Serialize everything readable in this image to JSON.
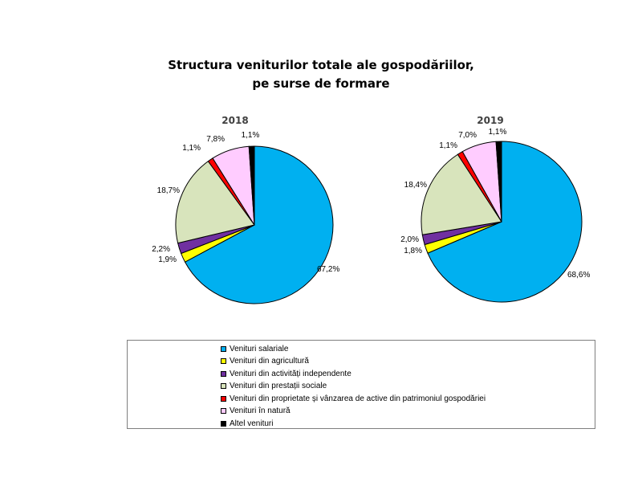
{
  "title_line1": "Structura veniturilor totale ale gospodăriilor,",
  "title_line2": "pe surse de formare",
  "chart_data": [
    {
      "type": "pie",
      "title": "2018",
      "categories": [
        "Venituri salariale",
        "Venituri din agricultură",
        "Venituri din activități independente",
        "Venituri din prestații sociale",
        "Venituri din proprietate și vânzarea de active din patrimoniul gospodăriei",
        "Venituri în natură",
        "Altel venituri"
      ],
      "values": [
        67.2,
        1.9,
        2.2,
        18.7,
        1.1,
        7.8,
        1.1
      ],
      "data_labels": [
        "67,2%",
        "1,9%",
        "2,2%",
        "18,7%",
        "1,1%",
        "7,8%",
        "1,1%"
      ]
    },
    {
      "type": "pie",
      "title": "2019",
      "categories": [
        "Venituri salariale",
        "Venituri din agricultură",
        "Venituri din activități independente",
        "Venituri din prestații sociale",
        "Venituri din proprietate și vânzarea de active din patrimoniul gospodăriei",
        "Venituri în natură",
        "Altel venituri"
      ],
      "values": [
        68.6,
        1.8,
        2.0,
        18.4,
        1.1,
        7.0,
        1.1
      ],
      "data_labels": [
        "68,6%",
        "1,8%",
        "2,0%",
        "18,4%",
        "1,1%",
        "7,0%",
        "1,1%"
      ]
    }
  ],
  "colors": [
    "#00b0f0",
    "#ffff00",
    "#7030a0",
    "#d8e4bc",
    "#ff0000",
    "#ffccff",
    "#000000"
  ],
  "legend_position": "bottom"
}
